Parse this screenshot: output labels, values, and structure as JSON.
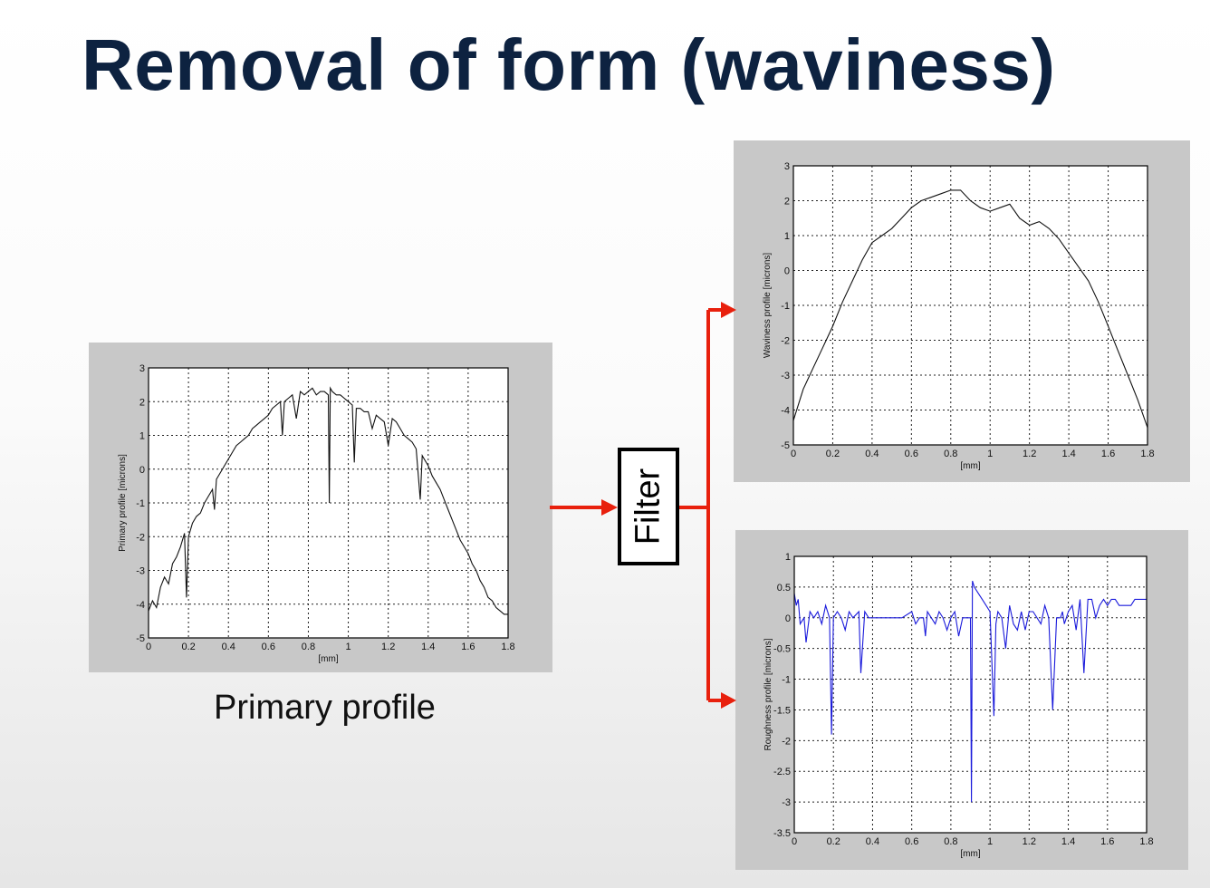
{
  "title": "Removal of form (waviness)",
  "caption": "Primary profile",
  "filter_label": "Filter",
  "colors": {
    "title": "#0d2240",
    "arrow": "#e8200d",
    "roughness_line": "#1a1adb",
    "primary_line": "#111111"
  },
  "chart_data": [
    {
      "type": "line",
      "id": "primary",
      "xlabel": "[mm]",
      "ylabel": "Primary profile [microns]",
      "xlim": [
        0,
        1.8
      ],
      "ylim": [
        -5,
        3
      ],
      "xticks": [
        "0",
        "0.2",
        "0.4",
        "0.6",
        "0.8",
        "1",
        "1.2",
        "1.4",
        "1.6",
        "1.8"
      ],
      "yticks": [
        "-5",
        "-4",
        "-3",
        "-2",
        "-1",
        "0",
        "1",
        "2",
        "3"
      ],
      "grid": true,
      "x": [
        0,
        0.02,
        0.04,
        0.06,
        0.08,
        0.1,
        0.12,
        0.14,
        0.16,
        0.18,
        0.19,
        0.2,
        0.22,
        0.24,
        0.26,
        0.28,
        0.3,
        0.32,
        0.33,
        0.34,
        0.36,
        0.38,
        0.4,
        0.42,
        0.44,
        0.46,
        0.48,
        0.5,
        0.52,
        0.54,
        0.56,
        0.58,
        0.6,
        0.62,
        0.64,
        0.66,
        0.67,
        0.68,
        0.7,
        0.72,
        0.74,
        0.76,
        0.78,
        0.8,
        0.82,
        0.84,
        0.86,
        0.88,
        0.9,
        0.905,
        0.91,
        0.92,
        0.94,
        0.96,
        0.98,
        1.0,
        1.02,
        1.03,
        1.04,
        1.06,
        1.08,
        1.1,
        1.12,
        1.14,
        1.16,
        1.18,
        1.2,
        1.22,
        1.24,
        1.26,
        1.28,
        1.3,
        1.32,
        1.34,
        1.36,
        1.37,
        1.38,
        1.4,
        1.42,
        1.44,
        1.46,
        1.48,
        1.5,
        1.52,
        1.54,
        1.56,
        1.58,
        1.6,
        1.62,
        1.64,
        1.66,
        1.68,
        1.7,
        1.72,
        1.74,
        1.76,
        1.78,
        1.8
      ],
      "y": [
        -4.2,
        -3.9,
        -4.1,
        -3.5,
        -3.2,
        -3.4,
        -2.8,
        -2.6,
        -2.3,
        -1.9,
        -3.8,
        -2.0,
        -1.6,
        -1.4,
        -1.3,
        -1.0,
        -0.8,
        -0.6,
        -1.2,
        -0.3,
        -0.1,
        0.1,
        0.3,
        0.5,
        0.7,
        0.8,
        0.9,
        1.0,
        1.2,
        1.3,
        1.4,
        1.5,
        1.6,
        1.8,
        1.9,
        2.0,
        1.0,
        2.0,
        2.1,
        2.2,
        1.5,
        2.3,
        2.2,
        2.3,
        2.4,
        2.2,
        2.3,
        2.3,
        2.2,
        -1.0,
        2.4,
        2.3,
        2.2,
        2.2,
        2.1,
        2.0,
        1.9,
        0.2,
        1.8,
        1.8,
        1.7,
        1.7,
        1.2,
        1.6,
        1.5,
        1.4,
        0.7,
        1.5,
        1.4,
        1.2,
        1.0,
        0.9,
        0.8,
        0.6,
        -0.9,
        0.4,
        0.3,
        0.1,
        -0.2,
        -0.4,
        -0.6,
        -0.9,
        -1.2,
        -1.5,
        -1.8,
        -2.1,
        -2.3,
        -2.5,
        -2.8,
        -3.0,
        -3.3,
        -3.5,
        -3.8,
        -3.9,
        -4.1,
        -4.2,
        -4.3,
        -4.3
      ]
    },
    {
      "type": "line",
      "id": "waviness",
      "xlabel": "[mm]",
      "ylabel": "Waviness profile [microns]",
      "xlim": [
        0,
        1.8
      ],
      "ylim": [
        -5,
        3
      ],
      "xticks": [
        "0",
        "0.2",
        "0.4",
        "0.6",
        "0.8",
        "1",
        "1.2",
        "1.4",
        "1.6",
        "1.8"
      ],
      "yticks": [
        "-5",
        "-4",
        "-3",
        "-2",
        "-1",
        "0",
        "1",
        "2",
        "3"
      ],
      "grid": true,
      "x": [
        0,
        0.05,
        0.1,
        0.15,
        0.2,
        0.25,
        0.3,
        0.35,
        0.4,
        0.45,
        0.5,
        0.55,
        0.6,
        0.65,
        0.7,
        0.75,
        0.8,
        0.85,
        0.9,
        0.95,
        1.0,
        1.05,
        1.1,
        1.15,
        1.2,
        1.25,
        1.3,
        1.35,
        1.4,
        1.45,
        1.5,
        1.55,
        1.6,
        1.65,
        1.7,
        1.75,
        1.8
      ],
      "y": [
        -4.3,
        -3.4,
        -2.8,
        -2.2,
        -1.6,
        -0.9,
        -0.3,
        0.3,
        0.8,
        1.0,
        1.2,
        1.5,
        1.8,
        2.0,
        2.1,
        2.2,
        2.3,
        2.3,
        2.0,
        1.8,
        1.7,
        1.8,
        1.9,
        1.5,
        1.3,
        1.4,
        1.2,
        0.9,
        0.5,
        0.1,
        -0.3,
        -0.9,
        -1.6,
        -2.3,
        -3.0,
        -3.7,
        -4.5
      ]
    },
    {
      "type": "line",
      "id": "roughness",
      "xlabel": "[mm]",
      "ylabel": "Roughness profile [microns]",
      "xlim": [
        0,
        1.8
      ],
      "ylim": [
        -3.5,
        1
      ],
      "xticks": [
        "0",
        "0.2",
        "0.4",
        "0.6",
        "0.8",
        "1",
        "1.2",
        "1.4",
        "1.6",
        "1.8"
      ],
      "yticks": [
        "-3.5",
        "-3",
        "-2.5",
        "-2",
        "-1.5",
        "-1",
        "-0.5",
        "0",
        "0.5",
        "1"
      ],
      "grid": true,
      "x": [
        0,
        0.01,
        0.02,
        0.03,
        0.05,
        0.06,
        0.08,
        0.1,
        0.12,
        0.14,
        0.16,
        0.18,
        0.19,
        0.2,
        0.22,
        0.24,
        0.26,
        0.28,
        0.3,
        0.33,
        0.34,
        0.36,
        0.38,
        0.4,
        0.45,
        0.5,
        0.55,
        0.6,
        0.62,
        0.64,
        0.66,
        0.67,
        0.68,
        0.7,
        0.72,
        0.74,
        0.76,
        0.78,
        0.8,
        0.82,
        0.84,
        0.86,
        0.88,
        0.9,
        0.905,
        0.91,
        0.92,
        0.94,
        0.96,
        0.98,
        1.0,
        1.02,
        1.03,
        1.04,
        1.06,
        1.08,
        1.1,
        1.12,
        1.14,
        1.16,
        1.18,
        1.2,
        1.22,
        1.24,
        1.26,
        1.28,
        1.3,
        1.32,
        1.34,
        1.36,
        1.37,
        1.38,
        1.4,
        1.42,
        1.44,
        1.46,
        1.48,
        1.5,
        1.52,
        1.54,
        1.56,
        1.58,
        1.6,
        1.62,
        1.64,
        1.66,
        1.68,
        1.7,
        1.72,
        1.74,
        1.76,
        1.78,
        1.8
      ],
      "y": [
        0.4,
        0.2,
        0.3,
        -0.1,
        0.0,
        -0.4,
        0.1,
        0.0,
        0.1,
        -0.1,
        0.2,
        0.0,
        -1.9,
        0.0,
        0.1,
        0.0,
        -0.2,
        0.1,
        0.0,
        0.1,
        -0.9,
        0.1,
        0.0,
        0.0,
        0.0,
        0.0,
        0.0,
        0.1,
        -0.1,
        0.0,
        0.0,
        -0.3,
        0.1,
        0.0,
        -0.1,
        0.1,
        0.0,
        -0.2,
        0.0,
        0.1,
        -0.3,
        0.0,
        0.0,
        0.0,
        -3.0,
        0.6,
        0.5,
        0.4,
        0.3,
        0.2,
        0.1,
        -1.6,
        -0.1,
        0.1,
        0.0,
        -0.5,
        0.2,
        -0.1,
        -0.2,
        0.1,
        -0.2,
        0.1,
        0.1,
        0.0,
        -0.1,
        0.2,
        0.0,
        -1.5,
        0.0,
        0.0,
        0.1,
        -0.1,
        0.1,
        0.2,
        -0.2,
        0.3,
        -0.9,
        0.3,
        0.3,
        0.0,
        0.2,
        0.3,
        0.2,
        0.3,
        0.3,
        0.2,
        0.2,
        0.2,
        0.2,
        0.3,
        0.3,
        0.3,
        0.3
      ]
    }
  ]
}
